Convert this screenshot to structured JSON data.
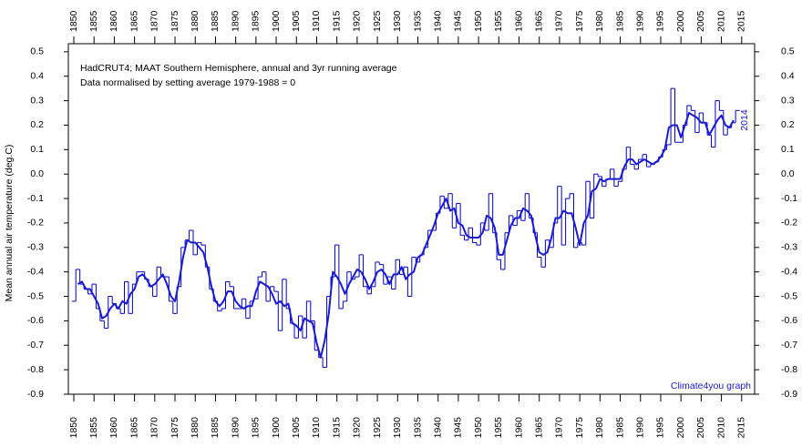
{
  "chart_data": {
    "type": "line",
    "title": "HadCRUT4; MAAT Southern Hemisphere, annual and 3yr running average",
    "subtitle": "Data normalised by setting average 1979-1988 = 0",
    "ylabel": "Mean annual air temperature (deg.C)",
    "annotations": [
      "2014",
      "Climate4you graph"
    ],
    "x": [
      1850,
      1851,
      1852,
      1853,
      1854,
      1855,
      1856,
      1857,
      1858,
      1859,
      1860,
      1861,
      1862,
      1863,
      1864,
      1865,
      1866,
      1867,
      1868,
      1869,
      1870,
      1871,
      1872,
      1873,
      1874,
      1875,
      1876,
      1877,
      1878,
      1879,
      1880,
      1881,
      1882,
      1883,
      1884,
      1885,
      1886,
      1887,
      1888,
      1889,
      1890,
      1891,
      1892,
      1893,
      1894,
      1895,
      1896,
      1897,
      1898,
      1899,
      1900,
      1901,
      1902,
      1903,
      1904,
      1905,
      1906,
      1907,
      1908,
      1909,
      1910,
      1911,
      1912,
      1913,
      1914,
      1915,
      1916,
      1917,
      1918,
      1919,
      1920,
      1921,
      1922,
      1923,
      1924,
      1925,
      1926,
      1927,
      1928,
      1929,
      1930,
      1931,
      1932,
      1933,
      1934,
      1935,
      1936,
      1937,
      1938,
      1939,
      1940,
      1941,
      1942,
      1943,
      1944,
      1945,
      1946,
      1947,
      1948,
      1949,
      1950,
      1951,
      1952,
      1953,
      1954,
      1955,
      1956,
      1957,
      1958,
      1959,
      1960,
      1961,
      1962,
      1963,
      1964,
      1965,
      1966,
      1967,
      1968,
      1969,
      1970,
      1971,
      1972,
      1973,
      1974,
      1975,
      1976,
      1977,
      1978,
      1979,
      1980,
      1981,
      1982,
      1983,
      1984,
      1985,
      1986,
      1987,
      1988,
      1989,
      1990,
      1991,
      1992,
      1993,
      1994,
      1995,
      1996,
      1997,
      1998,
      1999,
      2000,
      2001,
      2002,
      2003,
      2004,
      2005,
      2006,
      2007,
      2008,
      2009,
      2010,
      2011,
      2012,
      2013,
      2014
    ],
    "series": [
      {
        "color": "#0000c8",
        "style": "step",
        "values": [
          -0.52,
          -0.39,
          -0.45,
          -0.47,
          -0.49,
          -0.45,
          -0.55,
          -0.6,
          -0.63,
          -0.5,
          -0.53,
          -0.55,
          -0.57,
          -0.44,
          -0.57,
          -0.45,
          -0.4,
          -0.4,
          -0.43,
          -0.46,
          -0.5,
          -0.38,
          -0.42,
          -0.42,
          -0.52,
          -0.57,
          -0.46,
          -0.3,
          -0.27,
          -0.23,
          -0.33,
          -0.28,
          -0.29,
          -0.38,
          -0.47,
          -0.52,
          -0.56,
          -0.55,
          -0.44,
          -0.46,
          -0.55,
          -0.55,
          -0.51,
          -0.59,
          -0.52,
          -0.51,
          -0.42,
          -0.4,
          -0.52,
          -0.46,
          -0.48,
          -0.64,
          -0.43,
          -0.55,
          -0.61,
          -0.67,
          -0.58,
          -0.67,
          -0.52,
          -0.6,
          -0.72,
          -0.75,
          -0.79,
          -0.5,
          -0.42,
          -0.29,
          -0.55,
          -0.52,
          -0.4,
          -0.43,
          -0.42,
          -0.33,
          -0.46,
          -0.49,
          -0.46,
          -0.36,
          -0.37,
          -0.45,
          -0.42,
          -0.47,
          -0.35,
          -0.41,
          -0.38,
          -0.5,
          -0.34,
          -0.36,
          -0.33,
          -0.3,
          -0.23,
          -0.23,
          -0.16,
          -0.09,
          -0.14,
          -0.08,
          -0.22,
          -0.12,
          -0.25,
          -0.27,
          -0.22,
          -0.28,
          -0.29,
          -0.2,
          -0.23,
          -0.08,
          -0.24,
          -0.35,
          -0.39,
          -0.24,
          -0.17,
          -0.21,
          -0.15,
          -0.19,
          -0.08,
          -0.18,
          -0.24,
          -0.34,
          -0.38,
          -0.27,
          -0.3,
          -0.2,
          -0.05,
          -0.29,
          -0.1,
          -0.08,
          -0.3,
          -0.28,
          -0.29,
          -0.03,
          -0.18,
          0.0,
          -0.01,
          -0.05,
          -0.02,
          0.02,
          -0.05,
          -0.03,
          0.02,
          0.11,
          0.04,
          0.02,
          0.06,
          0.08,
          0.03,
          0.04,
          0.05,
          0.07,
          0.1,
          0.12,
          0.35,
          0.13,
          0.13,
          0.2,
          0.28,
          0.26,
          0.17,
          0.25,
          0.21,
          0.16,
          0.11,
          0.3,
          0.26,
          0.16,
          0.19,
          0.21,
          0.26
        ]
      },
      {
        "color": "#1a1ad0",
        "style": "line",
        "values": [
          null,
          -0.45,
          -0.44,
          -0.47,
          -0.47,
          -0.5,
          -0.53,
          -0.59,
          -0.58,
          -0.55,
          -0.53,
          -0.55,
          -0.52,
          -0.53,
          -0.49,
          -0.47,
          -0.42,
          -0.41,
          -0.43,
          -0.46,
          -0.45,
          -0.43,
          -0.41,
          -0.45,
          -0.5,
          -0.52,
          -0.44,
          -0.34,
          -0.27,
          -0.28,
          -0.28,
          -0.3,
          -0.32,
          -0.38,
          -0.46,
          -0.52,
          -0.54,
          -0.52,
          -0.48,
          -0.48,
          -0.52,
          -0.54,
          -0.55,
          -0.54,
          -0.54,
          -0.48,
          -0.44,
          -0.45,
          -0.46,
          -0.49,
          -0.53,
          -0.52,
          -0.54,
          -0.53,
          -0.61,
          -0.62,
          -0.64,
          -0.59,
          -0.6,
          -0.61,
          -0.69,
          -0.75,
          -0.68,
          -0.57,
          -0.4,
          -0.42,
          -0.45,
          -0.49,
          -0.45,
          -0.42,
          -0.39,
          -0.4,
          -0.43,
          -0.47,
          -0.44,
          -0.4,
          -0.39,
          -0.41,
          -0.45,
          -0.41,
          -0.41,
          -0.38,
          -0.43,
          -0.41,
          -0.4,
          -0.34,
          -0.33,
          -0.29,
          -0.25,
          -0.21,
          -0.16,
          -0.13,
          -0.1,
          -0.15,
          -0.14,
          -0.2,
          -0.21,
          -0.25,
          -0.26,
          -0.26,
          -0.26,
          -0.24,
          -0.17,
          -0.18,
          -0.22,
          -0.33,
          -0.33,
          -0.27,
          -0.21,
          -0.18,
          -0.18,
          -0.14,
          -0.15,
          -0.17,
          -0.25,
          -0.32,
          -0.33,
          -0.32,
          -0.26,
          -0.18,
          -0.18,
          -0.15,
          -0.16,
          -0.16,
          -0.22,
          -0.29,
          -0.2,
          -0.17,
          -0.07,
          -0.06,
          -0.02,
          -0.03,
          -0.02,
          -0.02,
          -0.02,
          -0.02,
          0.03,
          0.06,
          0.06,
          0.04,
          0.05,
          0.06,
          0.05,
          0.04,
          0.05,
          0.07,
          0.1,
          0.19,
          0.2,
          0.2,
          0.15,
          0.2,
          0.25,
          0.24,
          0.23,
          0.21,
          0.21,
          0.16,
          0.19,
          0.22,
          0.24,
          0.2,
          0.19,
          0.22,
          null
        ]
      }
    ],
    "xlim": [
      1848.65,
      2018.2
    ],
    "xticks": [
      1850,
      1855,
      1860,
      1865,
      1870,
      1875,
      1880,
      1885,
      1890,
      1895,
      1900,
      1905,
      1910,
      1915,
      1920,
      1925,
      1930,
      1935,
      1940,
      1945,
      1950,
      1955,
      1960,
      1965,
      1970,
      1975,
      1980,
      1985,
      1990,
      1995,
      2000,
      2005,
      2010,
      2015
    ],
    "ylim": [
      -0.9,
      0.533
    ],
    "yticks": [
      0.5,
      0.4,
      0.3,
      0.2,
      0.1,
      {
        "value": 0,
        "label": "0.0"
      },
      -0.1,
      -0.2,
      -0.3,
      -0.4,
      -0.5,
      -0.6,
      -0.7,
      -0.8,
      -0.9
    ],
    "grid": false
  }
}
